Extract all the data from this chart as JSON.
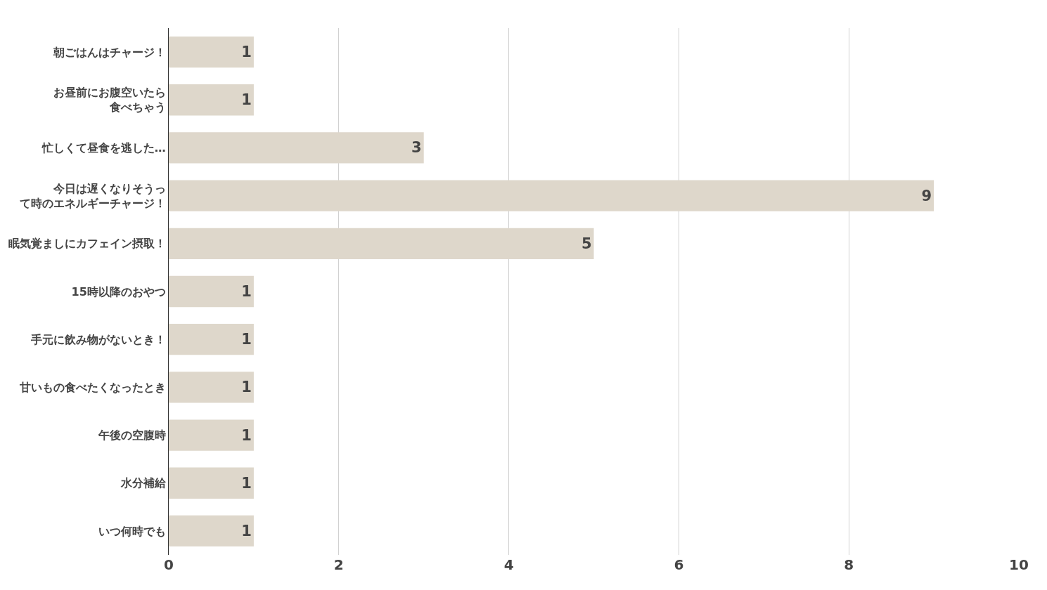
{
  "chart_data": {
    "type": "bar",
    "orientation": "horizontal",
    "categories": [
      "朝ごはんはチャージ！",
      "お昼前にお腹空いたら食べちゃう",
      "忙しくて昼食を逃した…",
      "今日は遅くなりそうって時のエネルギーチャージ！",
      "眠気覚ましにカフェイン摂取！",
      "15時以降のおやつ",
      "手元に飲み物がないとき！",
      "甘いもの食べたくなったとき",
      "午後の空腹時",
      "水分補給",
      "いつ何時でも"
    ],
    "values": [
      1,
      1,
      3,
      9,
      5,
      1,
      1,
      1,
      1,
      1,
      1
    ],
    "color": "#ded7cb",
    "xlim": [
      0,
      10
    ],
    "xticks": [
      0,
      2,
      4,
      6,
      8,
      10
    ],
    "grid": "x",
    "data_labels": true
  }
}
